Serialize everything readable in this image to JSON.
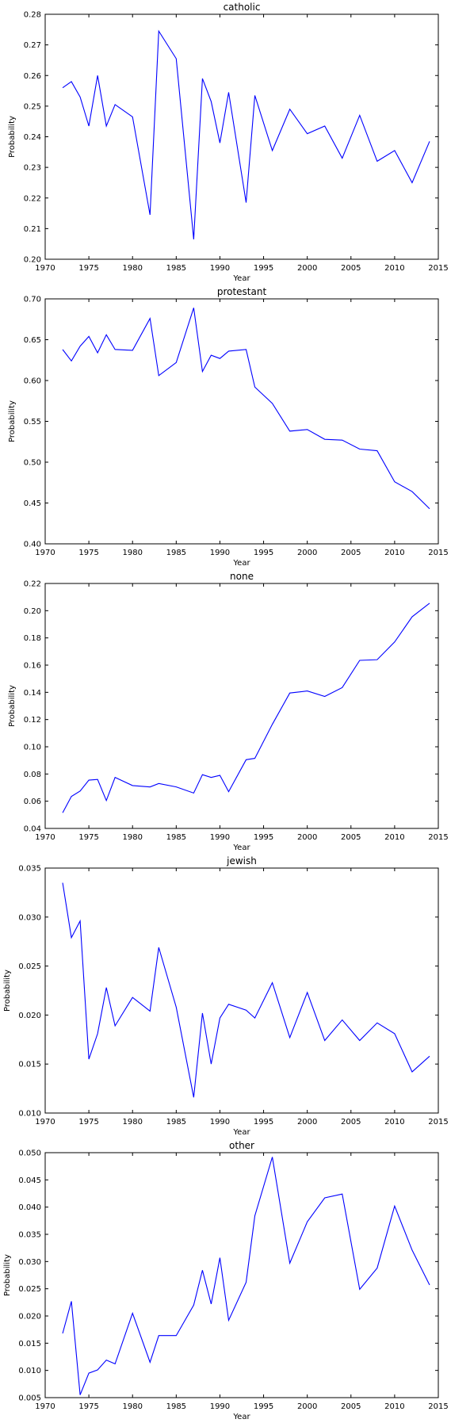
{
  "chart_data": [
    {
      "type": "line",
      "title": "catholic",
      "xlabel": "Year",
      "ylabel": "Probability",
      "xlim": [
        1970,
        2015
      ],
      "ylim": [
        0.2,
        0.28
      ],
      "xticks": [
        "1970",
        "1975",
        "1980",
        "1985",
        "1990",
        "1995",
        "2000",
        "2005",
        "2010",
        "2015"
      ],
      "yticks": [
        "0.20",
        "0.21",
        "0.22",
        "0.23",
        "0.24",
        "0.25",
        "0.26",
        "0.27",
        "0.28"
      ],
      "grid": false,
      "color": "#0000ff",
      "x": [
        1972,
        1973,
        1974,
        1975,
        1976,
        1977,
        1978,
        1980,
        1982,
        1983,
        1985,
        1987,
        1988,
        1989,
        1990,
        1991,
        1993,
        1994,
        1996,
        1998,
        2000,
        2002,
        2004,
        2006,
        2008,
        2010,
        2012,
        2014
      ],
      "y": [
        0.256,
        0.258,
        0.253,
        0.2435,
        0.26,
        0.2435,
        0.2505,
        0.2465,
        0.2145,
        0.2745,
        0.2655,
        0.2065,
        0.259,
        0.2515,
        0.238,
        0.2545,
        0.2185,
        0.2535,
        0.2355,
        0.249,
        0.241,
        0.2435,
        0.233,
        0.247,
        0.232,
        0.2355,
        0.225,
        0.2385
      ]
    },
    {
      "type": "line",
      "title": "protestant",
      "xlabel": "Year",
      "ylabel": "Probability",
      "xlim": [
        1970,
        2015
      ],
      "ylim": [
        0.4,
        0.7
      ],
      "xticks": [
        "1970",
        "1975",
        "1980",
        "1985",
        "1990",
        "1995",
        "2000",
        "2005",
        "2010",
        "2015"
      ],
      "yticks": [
        "0.40",
        "0.45",
        "0.50",
        "0.55",
        "0.60",
        "0.65",
        "0.70"
      ],
      "grid": false,
      "color": "#0000ff",
      "x": [
        1972,
        1973,
        1974,
        1975,
        1976,
        1977,
        1978,
        1980,
        1982,
        1983,
        1985,
        1987,
        1988,
        1989,
        1990,
        1991,
        1993,
        1994,
        1996,
        1998,
        2000,
        2002,
        2004,
        2006,
        2008,
        2010,
        2012,
        2014
      ],
      "y": [
        0.638,
        0.624,
        0.642,
        0.654,
        0.634,
        0.656,
        0.638,
        0.637,
        0.676,
        0.606,
        0.622,
        0.689,
        0.611,
        0.631,
        0.627,
        0.636,
        0.638,
        0.592,
        0.572,
        0.538,
        0.54,
        0.528,
        0.527,
        0.516,
        0.514,
        0.476,
        0.464,
        0.443
      ]
    },
    {
      "type": "line",
      "title": "none",
      "xlabel": "Year",
      "ylabel": "Probability",
      "xlim": [
        1970,
        2015
      ],
      "ylim": [
        0.04,
        0.22
      ],
      "xticks": [
        "1970",
        "1975",
        "1980",
        "1985",
        "1990",
        "1995",
        "2000",
        "2005",
        "2010",
        "2015"
      ],
      "yticks": [
        "0.04",
        "0.06",
        "0.08",
        "0.10",
        "0.12",
        "0.14",
        "0.16",
        "0.18",
        "0.20",
        "0.22"
      ],
      "grid": false,
      "color": "#0000ff",
      "x": [
        1972,
        1973,
        1974,
        1975,
        1976,
        1977,
        1978,
        1980,
        1982,
        1983,
        1985,
        1987,
        1988,
        1989,
        1990,
        1991,
        1993,
        1994,
        1996,
        1998,
        2000,
        2002,
        2004,
        2006,
        2008,
        2010,
        2012,
        2014
      ],
      "y": [
        0.0515,
        0.0635,
        0.0675,
        0.0755,
        0.076,
        0.0605,
        0.0775,
        0.0715,
        0.0705,
        0.073,
        0.0705,
        0.066,
        0.0795,
        0.0775,
        0.079,
        0.067,
        0.0905,
        0.0915,
        0.1165,
        0.1395,
        0.141,
        0.137,
        0.1435,
        0.1635,
        0.164,
        0.177,
        0.1955,
        0.2055
      ]
    },
    {
      "type": "line",
      "title": "jewish",
      "xlabel": "Year",
      "ylabel": "Probability",
      "xlim": [
        1970,
        2015
      ],
      "ylim": [
        0.01,
        0.035
      ],
      "xticks": [
        "1970",
        "1975",
        "1980",
        "1985",
        "1990",
        "1995",
        "2000",
        "2005",
        "2010",
        "2015"
      ],
      "yticks": [
        "0.010",
        "0.015",
        "0.020",
        "0.025",
        "0.030",
        "0.035"
      ],
      "grid": false,
      "color": "#0000ff",
      "x": [
        1972,
        1973,
        1974,
        1975,
        1976,
        1977,
        1978,
        1980,
        1982,
        1983,
        1985,
        1987,
        1988,
        1989,
        1990,
        1991,
        1993,
        1994,
        1996,
        1998,
        2000,
        2002,
        2004,
        2006,
        2008,
        2010,
        2012,
        2014
      ],
      "y": [
        0.0335,
        0.0279,
        0.0296,
        0.0155,
        0.0181,
        0.0228,
        0.0189,
        0.0218,
        0.0204,
        0.0269,
        0.0208,
        0.0116,
        0.0202,
        0.015,
        0.0197,
        0.0211,
        0.0205,
        0.0197,
        0.0233,
        0.0177,
        0.0223,
        0.0174,
        0.0195,
        0.0174,
        0.0192,
        0.0181,
        0.0142,
        0.0158
      ]
    },
    {
      "type": "line",
      "title": "other",
      "xlabel": "Year",
      "ylabel": "Probability",
      "xlim": [
        1970,
        2015
      ],
      "ylim": [
        0.005,
        0.05
      ],
      "xticks": [
        "1970",
        "1975",
        "1980",
        "1985",
        "1990",
        "1995",
        "2000",
        "2005",
        "2010",
        "2015"
      ],
      "yticks": [
        "0.005",
        "0.010",
        "0.015",
        "0.020",
        "0.025",
        "0.030",
        "0.035",
        "0.040",
        "0.045",
        "0.050"
      ],
      "grid": false,
      "color": "#0000ff",
      "x": [
        1972,
        1973,
        1974,
        1975,
        1976,
        1977,
        1978,
        1980,
        1982,
        1983,
        1985,
        1987,
        1988,
        1989,
        1990,
        1991,
        1993,
        1994,
        1996,
        1998,
        2000,
        2002,
        2004,
        2006,
        2008,
        2010,
        2012,
        2014
      ],
      "y": [
        0.0168,
        0.0227,
        0.0055,
        0.0095,
        0.0101,
        0.0119,
        0.0112,
        0.0205,
        0.0115,
        0.0164,
        0.0164,
        0.022,
        0.0284,
        0.0222,
        0.0307,
        0.0192,
        0.0262,
        0.0384,
        0.0492,
        0.0297,
        0.0373,
        0.0417,
        0.0424,
        0.0249,
        0.0288,
        0.0402,
        0.0321,
        0.0257
      ]
    }
  ]
}
